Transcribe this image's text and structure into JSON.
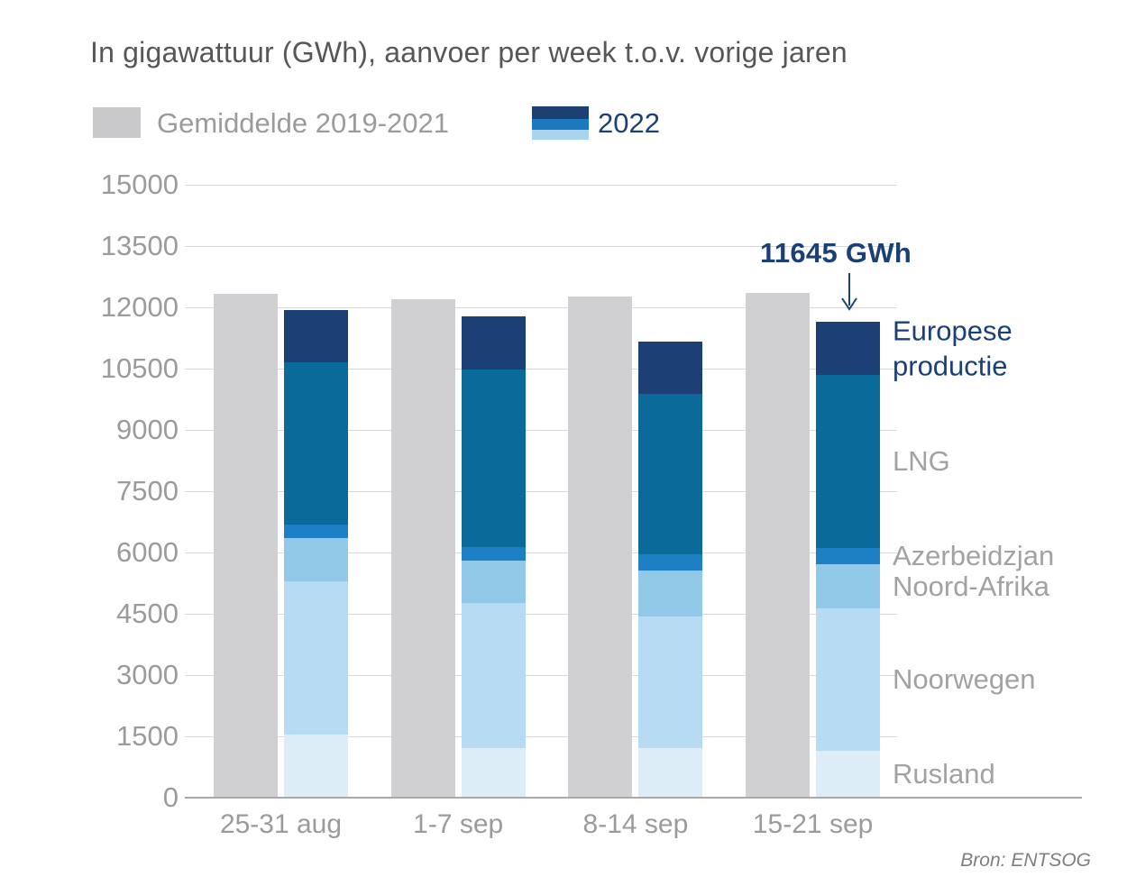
{
  "title": "In gigawattuur (GWh), aanvoer per week t.o.v. vorige jaren",
  "legend": {
    "average_label": "Gemiddelde 2019-2021",
    "year_label": "2022",
    "position": "top"
  },
  "annotation": {
    "text": "11645 GWh",
    "applies_to": "15-21 sep",
    "points_at": "top of 2022 bar"
  },
  "source": "Bron: ENTSOG",
  "colors": {
    "average_bar": "#d0d0d2",
    "legend_average_swatch": "#c9c9cb",
    "title_text": "#57575a",
    "axis_text": "#9b9b9d",
    "segment_label_text": "#a2a2a4",
    "accent_navy_text": "#1b4077",
    "gridline": "#d9d9d9",
    "baseline": "#a9a9ab",
    "legend_2022_stripes": [
      "#1d4073",
      "#1a7abd",
      "#a8d4ee"
    ]
  },
  "chart_data": {
    "type": "bar",
    "subtype": "grouped: average bar + stacked 2022 bar per category",
    "categories": [
      "25-31 aug",
      "1-7 sep",
      "8-14 sep",
      "15-21 sep"
    ],
    "average_series": {
      "name": "Gemiddelde 2019-2021",
      "values": [
        12330,
        12200,
        12260,
        12350
      ],
      "color": "#d0d0d2"
    },
    "series": [
      {
        "name": "Rusland",
        "values": [
          1540,
          1210,
          1210,
          1150
        ],
        "color": "#dcedf8",
        "label_color": "#a2a2a4"
      },
      {
        "name": "Noorwegen",
        "values": [
          3760,
          3550,
          3220,
          3480
        ],
        "color": "#b7dbf2",
        "label_color": "#a2a2a4"
      },
      {
        "name": "Noord-Afrika",
        "values": [
          1060,
          1040,
          1130,
          1080
        ],
        "color": "#92c9e9",
        "label_color": "#a2a2a4"
      },
      {
        "name": "Azerbeidzjan",
        "values": [
          330,
          330,
          400,
          400
        ],
        "color": "#1d80c5",
        "label_color": "#a2a2a4"
      },
      {
        "name": "LNG",
        "values": [
          3960,
          4350,
          3920,
          4230
        ],
        "color": "#0a6a9a",
        "label_color": "#a2a2a4"
      },
      {
        "name": "Europese productie",
        "values": [
          1280,
          1300,
          1280,
          1305
        ],
        "color": "#1c4075",
        "label_color": "#1b4077"
      }
    ],
    "totals_2022": [
      11930,
      11780,
      11160,
      11645
    ],
    "ylabel": "",
    "xlabel": "",
    "ylim": [
      0,
      15000
    ],
    "yticks": [
      0,
      1500,
      3000,
      4500,
      6000,
      7500,
      9000,
      10500,
      12000,
      13500,
      15000
    ],
    "grid": true,
    "legend_position": "top"
  }
}
